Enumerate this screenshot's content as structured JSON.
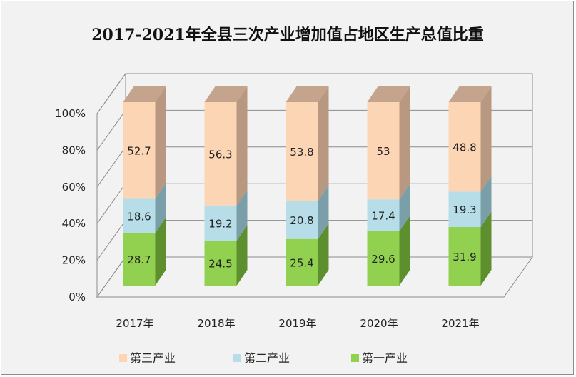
{
  "chart_data": {
    "type": "bar",
    "stacked": true,
    "three_d": true,
    "title": "2017-2021年全县三次产业增加值占地区生产总值比重",
    "categories": [
      "2017年",
      "2018年",
      "2019年",
      "2020年",
      "2021年"
    ],
    "series": [
      {
        "name": "第一产业",
        "values": [
          28.7,
          24.5,
          25.4,
          29.6,
          31.9
        ],
        "color": "#92d050",
        "side_color": "#5e8f2e",
        "top_color": "#7db53d"
      },
      {
        "name": "第二产业",
        "values": [
          18.6,
          19.2,
          20.8,
          17.4,
          19.3
        ],
        "color": "#b7dee8",
        "side_color": "#7a9fa8",
        "top_color": "#9cc6d0"
      },
      {
        "name": "第三产业",
        "values": [
          52.7,
          56.3,
          53.8,
          53,
          48.8
        ],
        "color": "#fcd5b5",
        "side_color": "#b89880",
        "top_color": "#c4a48c"
      }
    ],
    "ylim": [
      0,
      100
    ],
    "yticks": [
      "0%",
      "20%",
      "40%",
      "60%",
      "80%",
      "100%"
    ],
    "grid": true,
    "legend_position": "bottom"
  }
}
